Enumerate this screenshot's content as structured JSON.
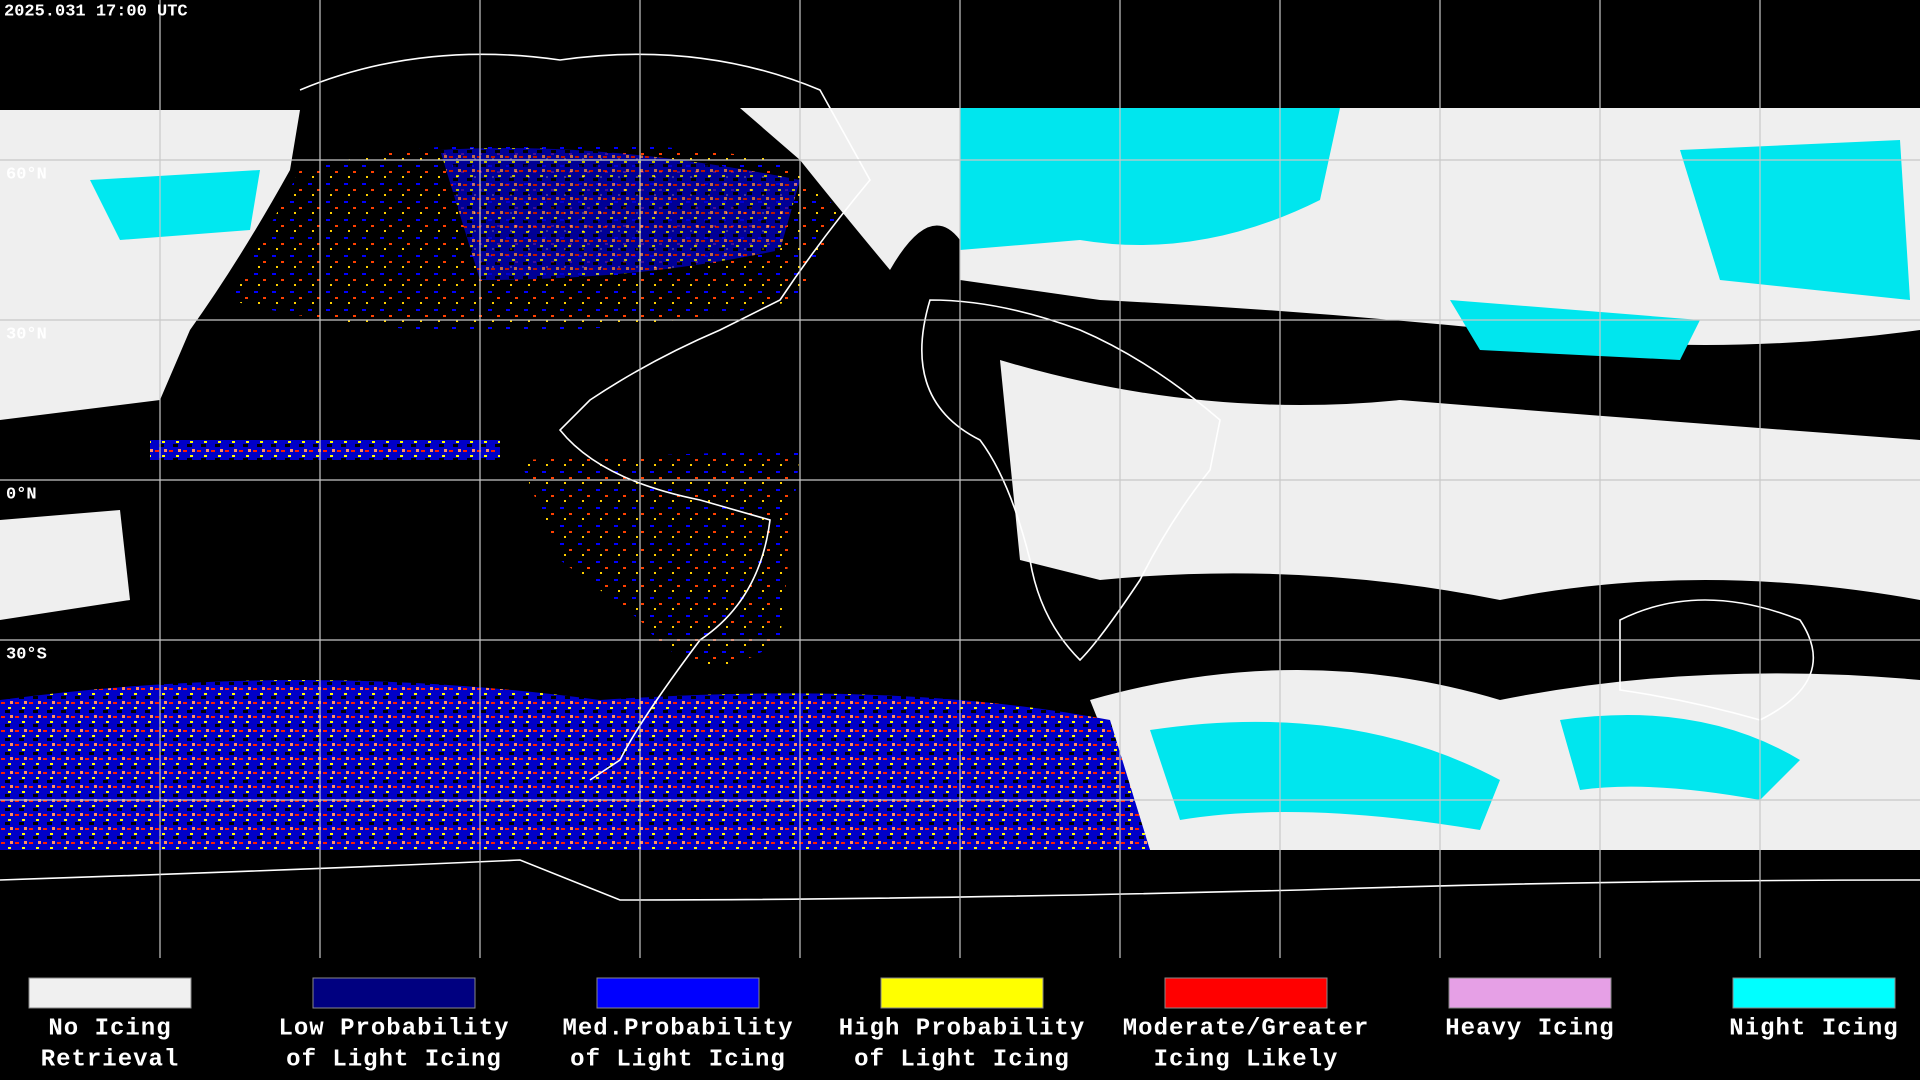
{
  "header": {
    "timestamp": "2025.031 17:00 UTC"
  },
  "map": {
    "latitude_labels": [
      "60°N",
      "30°N",
      "0°N",
      "30°S"
    ]
  },
  "legend": {
    "items": [
      {
        "lines": [
          "No Icing",
          "Retrieval"
        ],
        "color": "#f0f0f0"
      },
      {
        "lines": [
          "Low Probability",
          "of Light Icing"
        ],
        "color": "#000080"
      },
      {
        "lines": [
          "Med.Probability",
          "of Light Icing"
        ],
        "color": "#0000ff"
      },
      {
        "lines": [
          "High Probability",
          "of Light Icing"
        ],
        "color": "#ffff00"
      },
      {
        "lines": [
          "Moderate/Greater",
          "Icing Likely"
        ],
        "color": "#ff0000"
      },
      {
        "lines": [
          "Heavy Icing"
        ],
        "color": "#e6a0e6"
      },
      {
        "lines": [
          "Night Icing"
        ],
        "color": "#00ffff"
      }
    ]
  }
}
